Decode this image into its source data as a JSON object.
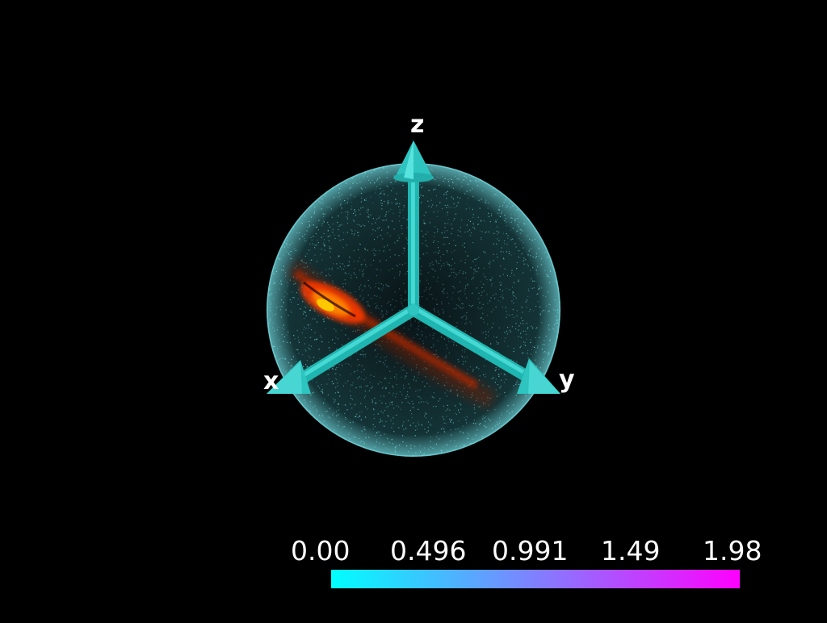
{
  "scene": {
    "background": "#000000",
    "sphere_color": "#7fe8ee",
    "arrow_color": "#2ec4c0",
    "band_colors": [
      "#ff3a00",
      "#ff8a00",
      "#ffd000"
    ]
  },
  "axes": {
    "x_label": "x",
    "y_label": "y",
    "z_label": "z"
  },
  "colorbar": {
    "ticks": [
      "0.00",
      "0.496",
      "0.991",
      "1.49",
      "1.98"
    ],
    "min_value": 0.0,
    "max_value": 1.98,
    "color_min": "#00ffff",
    "color_max": "#ff00ff"
  }
}
